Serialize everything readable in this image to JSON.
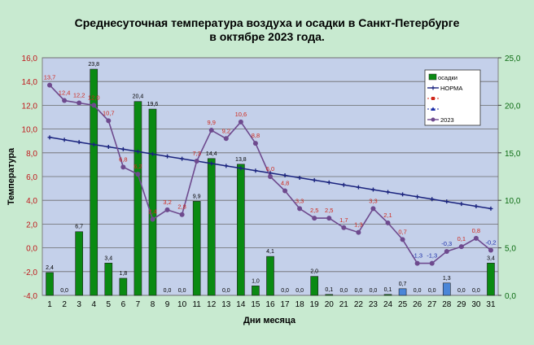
{
  "chart_data": {
    "type": "bar",
    "title_line1": "Среднесуточная температура воздуха и осадки в Санкт-Петербурге",
    "title_line2": "в октябре 2023 года.",
    "xlabel": "Дни месяца",
    "ylabel": "Температура",
    "ylim": [
      -4,
      16
    ],
    "y2lim": [
      0,
      25
    ],
    "categories": [
      "1",
      "2",
      "3",
      "4",
      "5",
      "6",
      "7",
      "8",
      "9",
      "10",
      "11",
      "12",
      "13",
      "14",
      "15",
      "16",
      "17",
      "18",
      "19",
      "20",
      "21",
      "22",
      "23",
      "24",
      "25",
      "26",
      "27",
      "28",
      "29",
      "30",
      "31"
    ],
    "y_ticks": [
      "-4,0",
      "-2,0",
      "0,0",
      "2,0",
      "4,0",
      "6,0",
      "8,0",
      "10,0",
      "12,0",
      "14,0",
      "16,0"
    ],
    "y2_ticks": [
      "0,0",
      "5,0",
      "10,0",
      "15,0",
      "20,0",
      "25,0"
    ],
    "legend": [
      "осадки",
      "НОРМА",
      "",
      "",
      "2023"
    ],
    "precip": [
      2.4,
      0.0,
      6.7,
      23.8,
      3.4,
      1.8,
      20.4,
      19.6,
      0.0,
      0.0,
      9.9,
      14.4,
      0.0,
      13.8,
      1.0,
      4.1,
      0.0,
      0.0,
      2.0,
      0.1,
      0.0,
      0.0,
      0.0,
      0.1,
      0.7,
      0.0,
      0.0,
      1.3,
      0.0,
      0.0,
      3.4
    ],
    "precip_labels": [
      "2,4",
      "0,0",
      "6,7",
      "23,8",
      "3,4",
      "1,8",
      "20,4",
      "19,6",
      "0,0",
      "0,0",
      "9,9",
      "14,4",
      "0,0",
      "13,8",
      "1,0",
      "4,1",
      "0,0",
      "0,0",
      "2,0",
      "0,1",
      "0,0",
      "0,0",
      "0,0",
      "0,1",
      "0,7",
      "0,0",
      "0,0",
      "1,3",
      "0,0",
      "0,0",
      "3,4"
    ],
    "snow_days": [
      25,
      28
    ],
    "temp_2023": [
      13.7,
      12.4,
      12.2,
      12.0,
      10.7,
      6.8,
      6.2,
      2.4,
      3.2,
      2.8,
      7.3,
      9.9,
      9.2,
      10.6,
      8.8,
      6.0,
      4.8,
      3.3,
      2.5,
      2.5,
      1.7,
      1.3,
      3.3,
      2.1,
      0.7,
      -1.3,
      -1.3,
      -0.3,
      0.1,
      0.8,
      -0.2
    ],
    "temp_labels": [
      "13,7",
      "12,4",
      "12,2",
      "12,0",
      "10,7",
      "6,8",
      "6,2",
      "2,4",
      "3,2",
      "2,8",
      "7,3",
      "9,9",
      "9,2",
      "10,6",
      "8,8",
      "6,0",
      "4,8",
      "3,3",
      "2,5",
      "2,5",
      "1,7",
      "1,3",
      "3,3",
      "2,1",
      "0,7",
      "-1,3",
      "-1,3",
      "-0,3",
      "0,1",
      "0,8",
      "-0,2"
    ],
    "norm": [
      9.3,
      9.1,
      8.9,
      8.7,
      8.5,
      8.3,
      8.1,
      7.9,
      7.7,
      7.5,
      7.3,
      7.1,
      6.9,
      6.7,
      6.5,
      6.3,
      6.1,
      5.9,
      5.7,
      5.5,
      5.3,
      5.1,
      4.9,
      4.7,
      4.5,
      4.3,
      4.1,
      3.9,
      3.7,
      3.5,
      3.3
    ],
    "colors": {
      "precip": "#0a8a12",
      "snow": "#4a86d8",
      "temp_line": "#6e4a8e",
      "temp_label": "#d0281c",
      "temp_label_negative": "#1c2ea8",
      "norm": "#1a237e",
      "y_axis": "#c0181c",
      "y2_axis": "#0a6a10",
      "plot_bg": "#c4d0ea",
      "outer_bg": "#c8ead0"
    }
  }
}
